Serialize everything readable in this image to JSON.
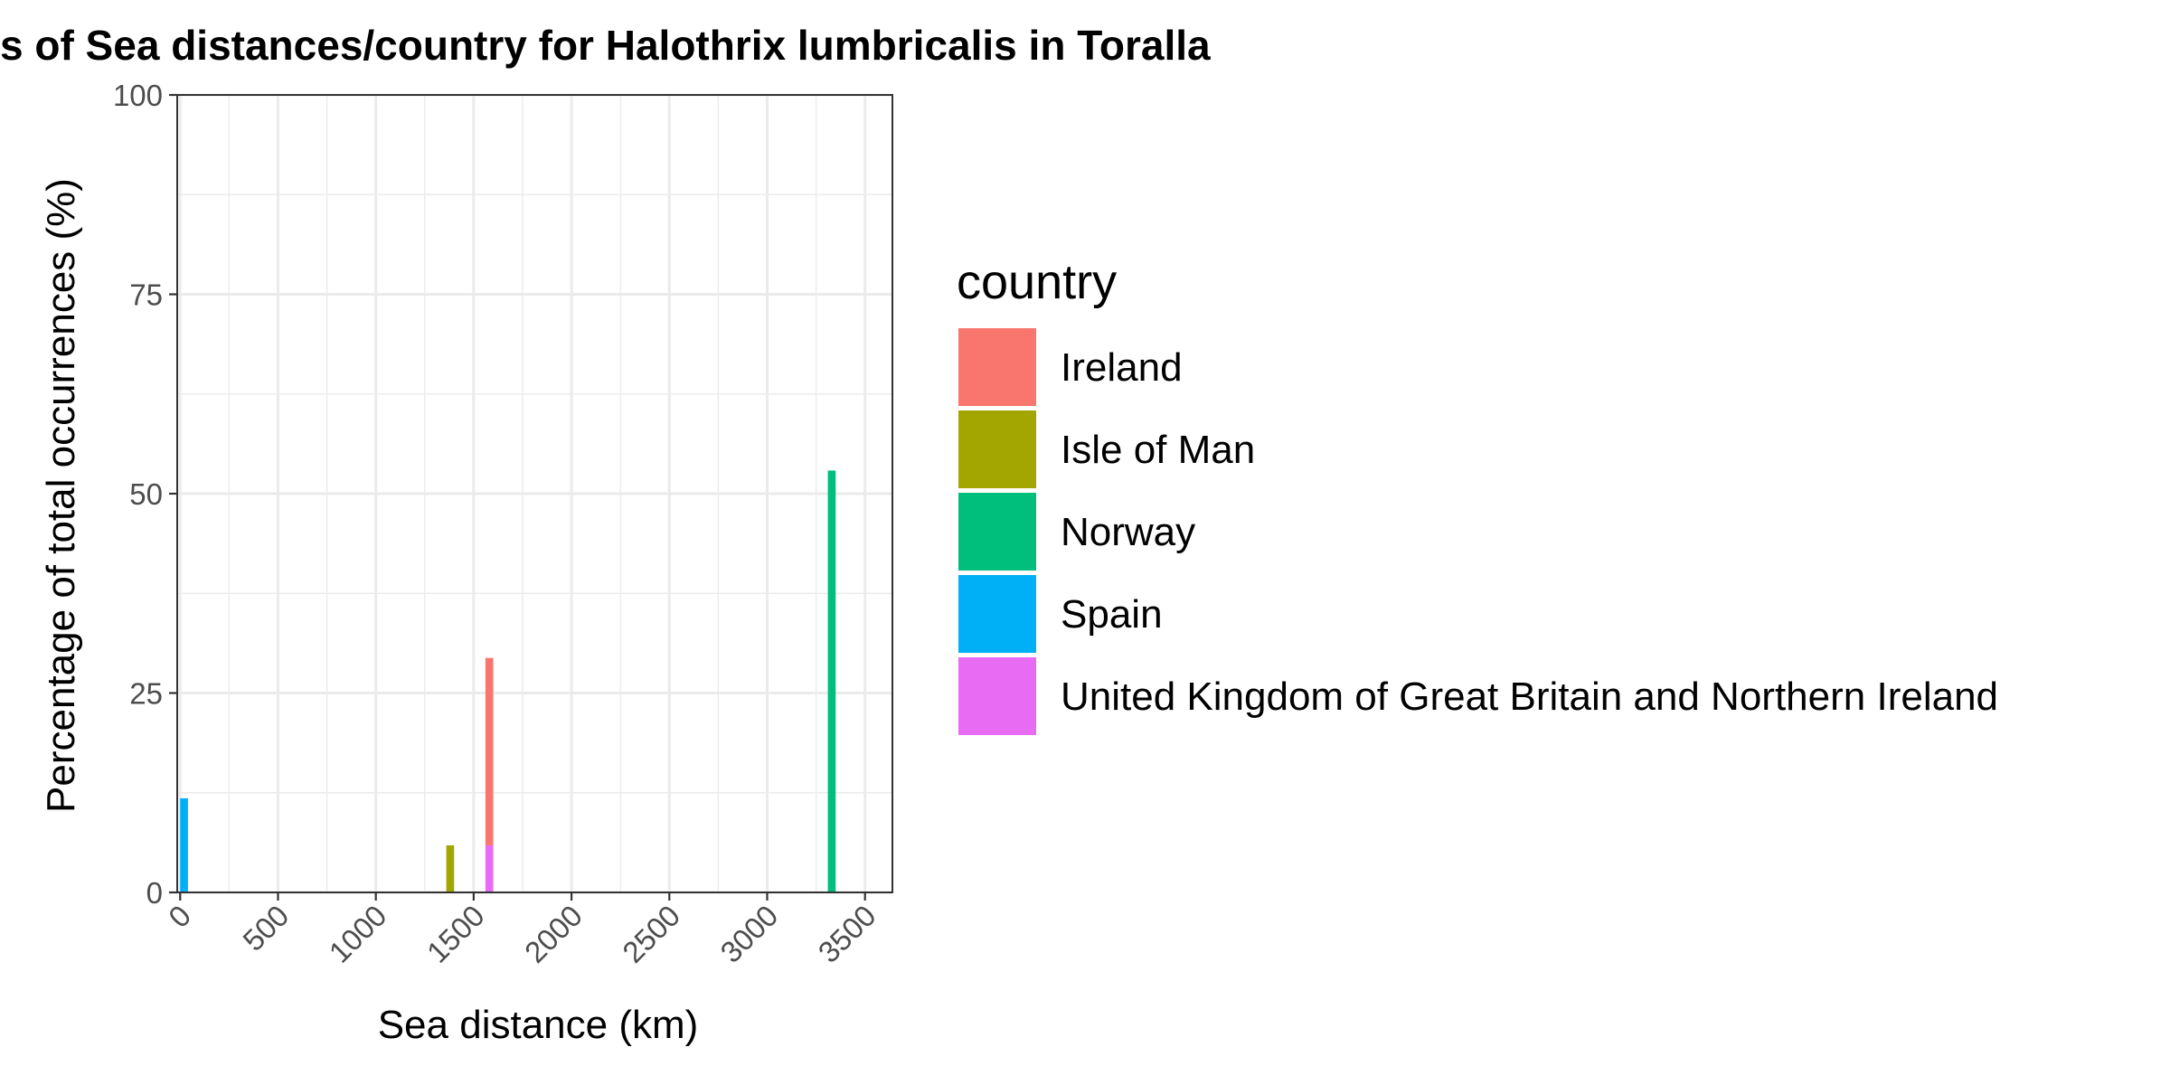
{
  "chart_data": {
    "type": "bar",
    "title": "s of Sea distances/country for Halothrix lumbricalis in Toralla",
    "xlabel": "Sea distance (km)",
    "ylabel": "Percentage of total occurrences (%)",
    "xlim": [
      -15,
      3640
    ],
    "ylim": [
      0,
      100
    ],
    "x_ticks": [
      0,
      500,
      1000,
      1500,
      2000,
      2500,
      3000,
      3500
    ],
    "y_ticks": [
      0,
      25,
      50,
      75,
      100
    ],
    "grid": true,
    "legend": {
      "title": "country",
      "position": "right"
    },
    "series": [
      {
        "name": "Ireland",
        "color": "#F8766D",
        "points": [
          {
            "x": 1580,
            "y": 23.5,
            "base": 5.9
          }
        ]
      },
      {
        "name": "Isle of Man",
        "color": "#A3A500",
        "points": [
          {
            "x": 1380,
            "y": 5.9,
            "base": 0
          }
        ]
      },
      {
        "name": "Norway",
        "color": "#00BF7D",
        "points": [
          {
            "x": 3330,
            "y": 52.9,
            "base": 0
          }
        ]
      },
      {
        "name": "Spain",
        "color": "#00B0F6",
        "points": [
          {
            "x": 20,
            "y": 11.8,
            "base": 0
          }
        ]
      },
      {
        "name": "United Kingdom of Great Britain and Northern Ireland",
        "color": "#E76BF3",
        "points": [
          {
            "x": 1580,
            "y": 5.9,
            "base": 0
          }
        ]
      }
    ],
    "bar_width": 40
  }
}
